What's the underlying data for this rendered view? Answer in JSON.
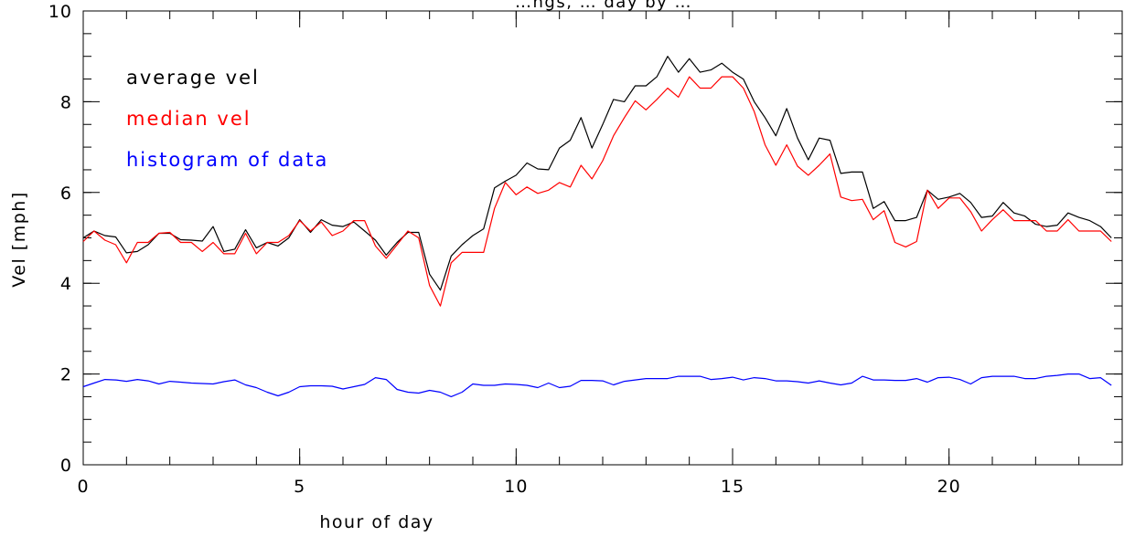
{
  "chart_data": {
    "type": "line",
    "title": "…ngs, … day by …",
    "xlabel": "hour of day",
    "ylabel": "Vel [mph]",
    "xlim": [
      0,
      24
    ],
    "ylim": [
      0,
      10
    ],
    "x_ticks": [
      0,
      5,
      10,
      15,
      20
    ],
    "y_ticks": [
      0,
      2,
      4,
      6,
      8,
      10
    ],
    "grid": false,
    "legend_placement": "top-left",
    "x_step": 0.25,
    "series": [
      {
        "name": "average vel",
        "color": "#000000",
        "values": [
          5.0,
          5.15,
          5.05,
          5.02,
          4.67,
          4.7,
          4.85,
          5.1,
          5.1,
          4.96,
          4.95,
          4.93,
          5.25,
          4.7,
          4.75,
          5.18,
          4.78,
          4.9,
          4.82,
          5.0,
          5.4,
          5.12,
          5.4,
          5.28,
          5.25,
          5.35,
          5.15,
          4.95,
          4.62,
          4.9,
          5.12,
          5.12,
          4.2,
          3.85,
          4.6,
          4.85,
          5.05,
          5.2,
          6.1,
          6.25,
          6.38,
          6.65,
          6.52,
          6.5,
          6.98,
          7.15,
          7.65,
          6.98,
          7.5,
          8.05,
          8.0,
          8.35,
          8.35,
          8.55,
          9.0,
          8.65,
          8.95,
          8.65,
          8.7,
          8.85,
          8.65,
          8.5,
          8.0,
          7.65,
          7.25,
          7.85,
          7.2,
          6.72,
          7.2,
          7.15,
          6.42,
          6.45,
          6.45,
          5.65,
          5.8,
          5.38,
          5.38,
          5.45,
          6.05,
          5.85,
          5.9,
          5.98,
          5.78,
          5.45,
          5.48,
          5.78,
          5.55,
          5.48,
          5.3,
          5.25,
          5.28,
          5.55,
          5.45,
          5.38,
          5.25,
          5.0
        ]
      },
      {
        "name": "median vel",
        "color": "#ff0000",
        "values": [
          4.92,
          5.15,
          4.95,
          4.85,
          4.45,
          4.9,
          4.9,
          5.1,
          5.12,
          4.9,
          4.9,
          4.7,
          4.9,
          4.65,
          4.65,
          5.1,
          4.65,
          4.9,
          4.9,
          5.05,
          5.38,
          5.15,
          5.35,
          5.05,
          5.15,
          5.38,
          5.38,
          4.82,
          4.55,
          4.85,
          5.15,
          5.0,
          3.95,
          3.5,
          4.45,
          4.68,
          4.68,
          4.68,
          5.65,
          6.22,
          5.95,
          6.12,
          5.98,
          6.05,
          6.22,
          6.12,
          6.6,
          6.3,
          6.7,
          7.25,
          7.65,
          8.02,
          7.82,
          8.05,
          8.3,
          8.1,
          8.55,
          8.3,
          8.3,
          8.55,
          8.55,
          8.3,
          7.78,
          7.05,
          6.6,
          7.05,
          6.58,
          6.38,
          6.6,
          6.85,
          5.9,
          5.82,
          5.85,
          5.4,
          5.6,
          4.9,
          4.8,
          4.92,
          6.05,
          5.65,
          5.88,
          5.88,
          5.58,
          5.15,
          5.4,
          5.62,
          5.38,
          5.38,
          5.38,
          5.15,
          5.15,
          5.4,
          5.15,
          5.15,
          5.15,
          4.92
        ]
      },
      {
        "name": "histogram of data",
        "color": "#0000ff",
        "values": [
          1.72,
          1.8,
          1.88,
          1.87,
          1.84,
          1.88,
          1.85,
          1.78,
          1.84,
          1.82,
          1.8,
          1.79,
          1.78,
          1.83,
          1.87,
          1.76,
          1.7,
          1.6,
          1.52,
          1.6,
          1.72,
          1.74,
          1.74,
          1.73,
          1.67,
          1.72,
          1.77,
          1.92,
          1.88,
          1.66,
          1.6,
          1.58,
          1.64,
          1.6,
          1.5,
          1.6,
          1.78,
          1.75,
          1.75,
          1.78,
          1.77,
          1.75,
          1.7,
          1.8,
          1.7,
          1.73,
          1.86,
          1.86,
          1.85,
          1.76,
          1.84,
          1.87,
          1.9,
          1.9,
          1.9,
          1.95,
          1.95,
          1.95,
          1.88,
          1.9,
          1.93,
          1.87,
          1.92,
          1.9,
          1.85,
          1.85,
          1.83,
          1.8,
          1.85,
          1.8,
          1.76,
          1.8,
          1.95,
          1.87,
          1.87,
          1.86,
          1.86,
          1.9,
          1.82,
          1.92,
          1.93,
          1.88,
          1.78,
          1.92,
          1.95,
          1.95,
          1.95,
          1.9,
          1.9,
          1.95,
          1.97,
          2.0,
          2.0,
          1.9,
          1.92,
          1.75
        ]
      }
    ]
  }
}
